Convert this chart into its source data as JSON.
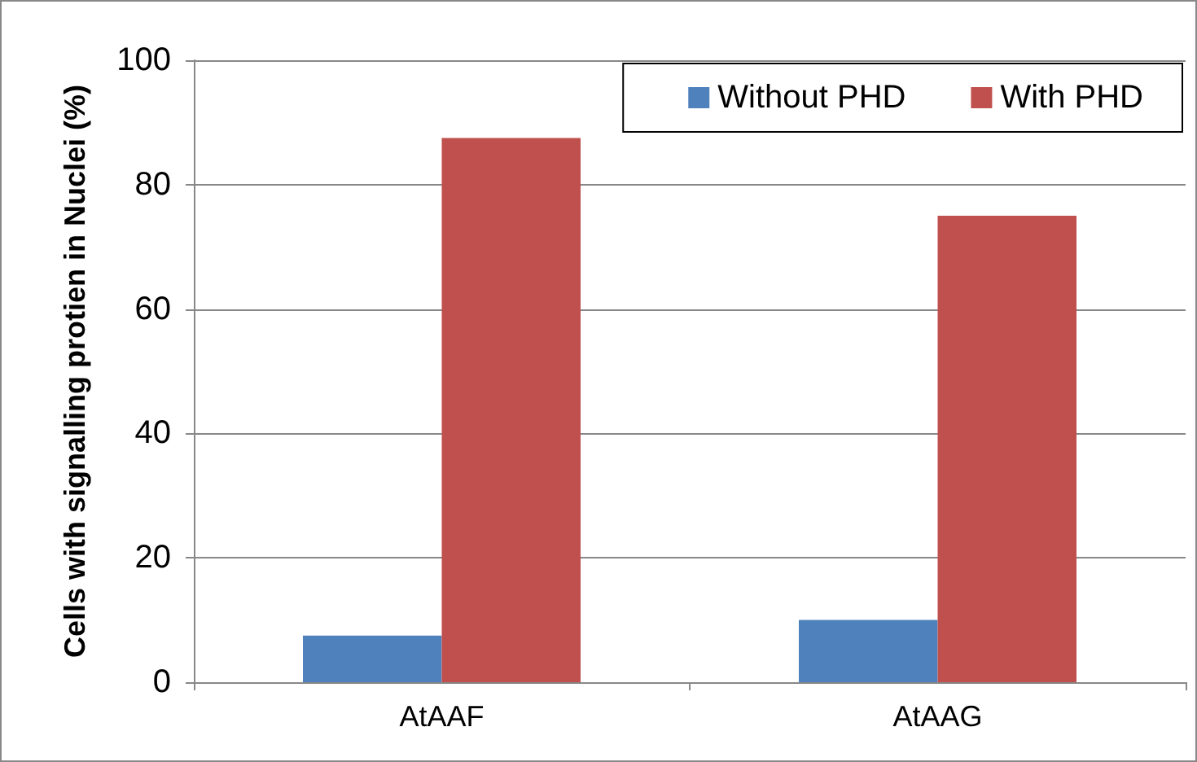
{
  "chart_data": {
    "type": "bar",
    "ylabel": "Cells with signalling protien in Nuclei (%)",
    "categories": [
      "AtAAF",
      "AtAAG"
    ],
    "series": [
      {
        "name": "Without PHD",
        "color": "#4f81bd",
        "values": [
          7.5,
          10
        ]
      },
      {
        "name": "With PHD",
        "color": "#c0504d",
        "values": [
          87.5,
          75
        ]
      }
    ],
    "ylim": [
      0,
      100
    ],
    "yticks": [
      0,
      20,
      40,
      60,
      80,
      100
    ],
    "grid": "y",
    "legend": "top right"
  }
}
